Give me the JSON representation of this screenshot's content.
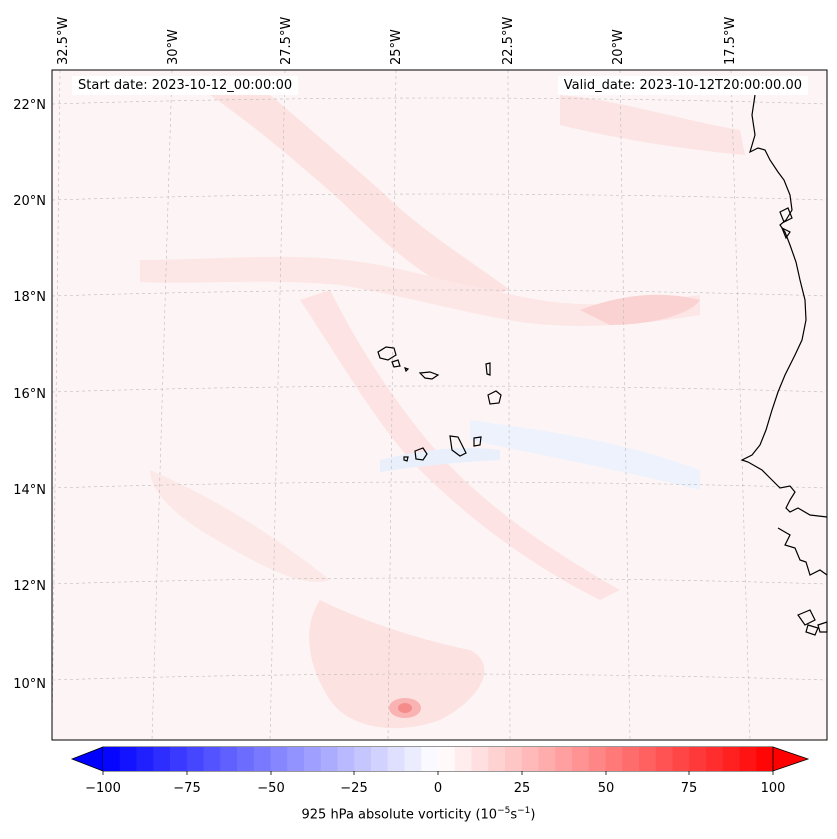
{
  "header": {
    "start_date": "Start date: 2023-10-12_00:00:00",
    "valid_date": "Valid_date: 2023-10-12T20:00:00.00"
  },
  "axes": {
    "lon_labels": [
      "32.5°W",
      "30°W",
      "27.5°W",
      "25°W",
      "22.5°W",
      "20°W",
      "17.5°W"
    ],
    "lat_labels": [
      "22°N",
      "20°N",
      "18°N",
      "16°N",
      "14°N",
      "12°N",
      "10°N"
    ]
  },
  "colorbar": {
    "ticks": [
      "−100",
      "−75",
      "−50",
      "−25",
      "0",
      "25",
      "50",
      "75",
      "100"
    ],
    "range": [
      -100,
      100
    ],
    "label_prefix": "925 hPa absolute vorticity (10",
    "label_exp1": "−5",
    "label_mid": "s",
    "label_exp2": "−1",
    "label_suffix": ")",
    "low_color": "#0000ff",
    "high_color": "#ff0000"
  },
  "colors": {
    "background": "#fdf5f5",
    "weak_positive": "#fde4e4",
    "moderate_positive": "#fbcaca",
    "weak_negative": "#eef2fd",
    "coast": "#000000"
  }
}
